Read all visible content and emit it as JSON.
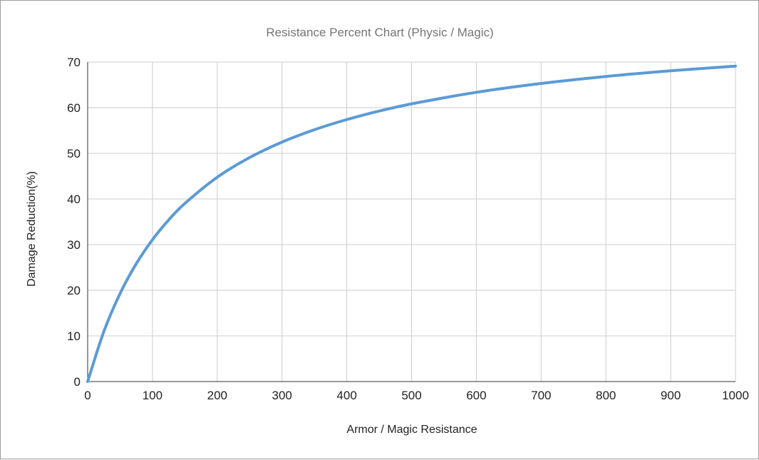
{
  "chart_data": {
    "type": "line",
    "title": "Resistance Percent Chart (Physic / Magic)",
    "xlabel": "Armor / Magic Resistance",
    "ylabel": "Damage Reduction(%)",
    "xlim": [
      0,
      1000
    ],
    "ylim": [
      0,
      70
    ],
    "xticks": [
      0,
      100,
      200,
      300,
      400,
      500,
      600,
      700,
      800,
      900,
      1000
    ],
    "yticks": [
      0,
      10,
      20,
      30,
      40,
      50,
      60,
      70
    ],
    "grid": true,
    "legend": "none",
    "series": [
      {
        "name": "Damage Reduction",
        "color": "#5b9bd5",
        "x": [
          0,
          25,
          50,
          75,
          100,
          125,
          150,
          200,
          250,
          300,
          350,
          400,
          450,
          500,
          600,
          700,
          800,
          900,
          1000
        ],
        "y": [
          0,
          10.96,
          19.28,
          25.81,
          31.07,
          35.4,
          39.02,
          44.76,
          49.08,
          52.46,
          55.17,
          57.4,
          59.26,
          60.84,
          63.37,
          65.31,
          66.84,
          68.09,
          69.11
        ]
      }
    ]
  }
}
